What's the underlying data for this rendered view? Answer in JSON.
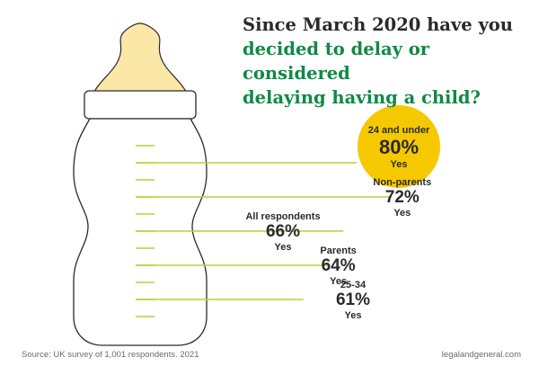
{
  "title": {
    "line1": "Since March 2020 have you",
    "line2": "decided to delay or considered",
    "line3": "delaying having a child?"
  },
  "footer": {
    "source": "Source: UK survey of 1,001 respondents. 2021",
    "brand": "legalandgeneral.com"
  },
  "colors": {
    "teat": "#fbe7a6",
    "collar": "#ffffff",
    "outline": "#2a2a2a",
    "line": "#b5d334",
    "highlight_circle": "#f5c800",
    "title_highlight": "#0f8a43"
  },
  "chart_data": {
    "type": "bar",
    "title": "Since March 2020 have you decided to delay or considered delaying having a child?",
    "unit": "%",
    "answer": "Yes",
    "highlight": "24 and under",
    "categories": [
      "24 and under",
      "Non-parents",
      "All respondents",
      "Parents",
      "25-34"
    ],
    "values": [
      80,
      72,
      66,
      64,
      61
    ],
    "labels": [
      "80%",
      "72%",
      "66%",
      "64%",
      "61%"
    ],
    "xlabel": "",
    "ylabel": ""
  }
}
